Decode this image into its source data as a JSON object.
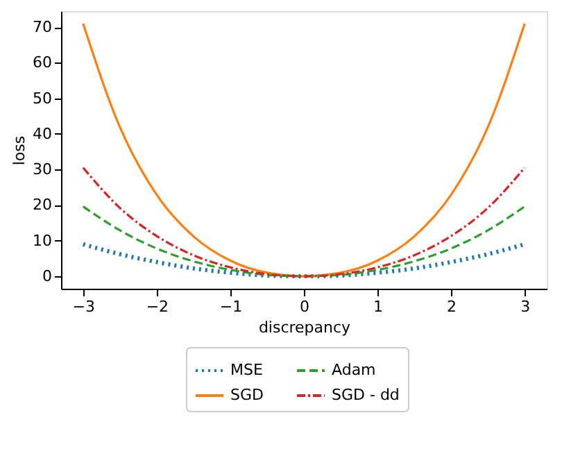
{
  "chart_data": {
    "type": "line",
    "xlabel": "discrepancy",
    "ylabel": "loss",
    "x": [
      -3,
      -2.5,
      -2,
      -1.5,
      -1,
      -0.5,
      0,
      0.5,
      1,
      1.5,
      2,
      2.5,
      3
    ],
    "series": [
      {
        "name": "MSE",
        "color": "#1f77b4",
        "line_style": "dotted",
        "values": [
          9,
          6.2,
          4,
          2.2,
          1,
          0.2,
          0,
          0.2,
          1,
          2.2,
          4,
          6.2,
          9
        ]
      },
      {
        "name": "SGD",
        "color": "#ff7f0e",
        "line_style": "solid",
        "values": [
          71,
          41.9,
          22.9,
          11.2,
          4.4,
          1.0,
          0,
          1.0,
          4.4,
          11.2,
          22.9,
          41.9,
          71
        ]
      },
      {
        "name": "Adam",
        "color": "#2ca02c",
        "line_style": "dashed",
        "values": [
          19.6,
          12.9,
          7.8,
          4.2,
          1.8,
          0.4,
          0,
          0.4,
          1.8,
          4.2,
          7.8,
          12.9,
          19.6
        ]
      },
      {
        "name": "SGD - dd",
        "color": "#d62728",
        "line_style": "dashdot",
        "values": [
          30.5,
          19.2,
          11.3,
          5.9,
          2.5,
          0.6,
          0,
          0.6,
          2.5,
          5.9,
          11.3,
          19.2,
          30.5
        ]
      }
    ],
    "xlim": [
      -3.3,
      3.3
    ],
    "ylim": [
      -3.5,
      74.5
    ],
    "xticks": [
      -3,
      -2,
      -1,
      0,
      1,
      2,
      3
    ],
    "yticks": [
      0,
      10,
      20,
      30,
      40,
      50,
      60,
      70
    ],
    "grid": false,
    "legend": "bottom"
  }
}
